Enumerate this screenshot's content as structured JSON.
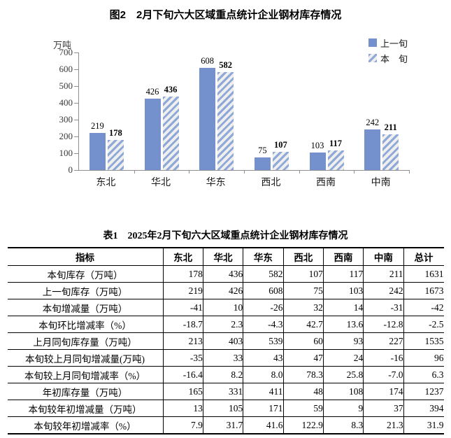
{
  "chart": {
    "legend_labels": [
      "上一旬",
      "本　旬"
    ],
    "colors": {
      "bar_solid": "#7491ce",
      "hatch_stripe": "#8ea8da",
      "hatch_bg": "#efefed",
      "axis": "#8f8f8f"
    }
  },
  "chart_data": {
    "type": "bar",
    "title": "图2　2月下旬六大区域重点统计企业钢材库存情况",
    "ylabel": "万吨",
    "categories": [
      "东北",
      "华北",
      "华东",
      "西北",
      "西南",
      "中南"
    ],
    "series": [
      {
        "name": "上一旬",
        "values": [
          219,
          426,
          608,
          75,
          103,
          242
        ]
      },
      {
        "name": "本旬",
        "values": [
          178,
          436,
          582,
          107,
          117,
          211
        ]
      }
    ],
    "ylim": [
      0,
      700
    ],
    "ytick_step": 100,
    "grid": false,
    "legend_position": "top-right"
  },
  "table": {
    "title": "表1　2025年2月下旬六大区域重点统计企业钢材库存情况",
    "columns": [
      "指标",
      "东北",
      "华北",
      "华东",
      "西北",
      "西南",
      "中南",
      "总计"
    ],
    "rows": [
      {
        "label": "本旬库存（万吨）",
        "values": [
          "178",
          "436",
          "582",
          "107",
          "117",
          "211",
          "1631"
        ]
      },
      {
        "label": "上一旬库存（万吨）",
        "values": [
          "219",
          "426",
          "608",
          "75",
          "103",
          "242",
          "1673"
        ]
      },
      {
        "label": "本旬增减量（万吨）",
        "values": [
          "-41",
          "10",
          "-26",
          "32",
          "14",
          "-31",
          "-42"
        ]
      },
      {
        "label": "本旬环比增减率（%）",
        "values": [
          "-18.7",
          "2.3",
          "-4.3",
          "42.7",
          "13.6",
          "-12.8",
          "-2.5"
        ]
      },
      {
        "label": "上月同旬库存量（万吨）",
        "values": [
          "213",
          "403",
          "539",
          "60",
          "93",
          "227",
          "1535"
        ]
      },
      {
        "label": "本旬较上月同旬增减量(万吨)",
        "values": [
          "-35",
          "33",
          "43",
          "47",
          "24",
          "-16",
          "96"
        ]
      },
      {
        "label": "本旬较上月同旬增减率（%）",
        "values": [
          "-16.4",
          "8.2",
          "8.0",
          "78.3",
          "25.8",
          "-7.0",
          "6.3"
        ]
      },
      {
        "label": "年初库存量（万吨）",
        "values": [
          "165",
          "331",
          "411",
          "48",
          "108",
          "174",
          "1237"
        ]
      },
      {
        "label": "本旬较年初增减量（万吨）",
        "values": [
          "13",
          "105",
          "171",
          "59",
          "9",
          "37",
          "394"
        ]
      },
      {
        "label": "本旬较年初增减率（%）",
        "values": [
          "7.9",
          "31.7",
          "41.6",
          "122.9",
          "8.3",
          "21.3",
          "31.9"
        ]
      }
    ]
  }
}
